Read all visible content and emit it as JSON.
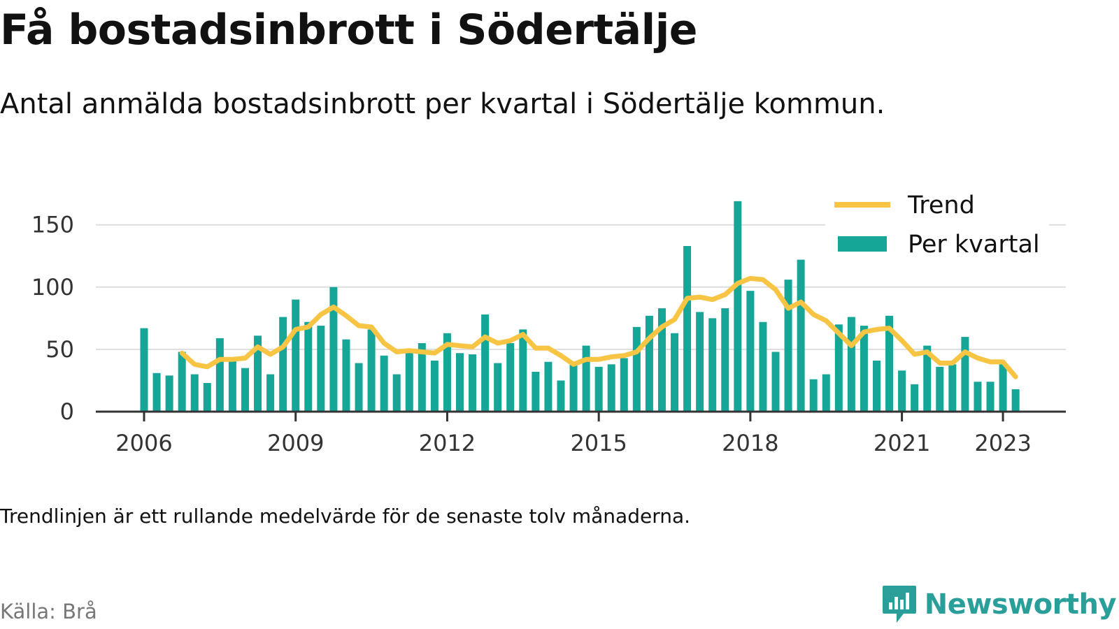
{
  "header": {
    "title": "Få bostadsinbrott i Södertälje",
    "subtitle": "Antal anmälda bostadsinbrott per kvartal i Södertälje kommun."
  },
  "footer": {
    "note": "Trendlinjen är ett rullande medelvärde för de senaste tolv månaderna.",
    "source": "Källa: Brå",
    "brand": "Newsworthy"
  },
  "colors": {
    "bar": "#16a697",
    "trend": "#f7c444",
    "grid": "#dddddd",
    "axis": "#333333",
    "brand": "#2a9f99"
  },
  "chart_data": {
    "type": "bar",
    "x_start": "2006 Q1",
    "ylim": [
      0,
      170
    ],
    "yticks": [
      0,
      50,
      100,
      150
    ],
    "xtick_labels": [
      {
        "label": "2006",
        "year": 2006
      },
      {
        "label": "2009",
        "year": 2009
      },
      {
        "label": "2012",
        "year": 2012
      },
      {
        "label": "2015",
        "year": 2015
      },
      {
        "label": "2018",
        "year": 2018
      },
      {
        "label": "2021",
        "year": 2021
      },
      {
        "label": "2023",
        "year": 2023
      }
    ],
    "grid": true,
    "legend_position": "top-right",
    "series": [
      {
        "name": "Per kvartal",
        "kind": "bar",
        "values": [
          67,
          31,
          29,
          48,
          30,
          23,
          59,
          43,
          35,
          61,
          30,
          76,
          90,
          72,
          69,
          100,
          58,
          39,
          66,
          45,
          30,
          48,
          55,
          41,
          63,
          47,
          46,
          78,
          39,
          55,
          66,
          32,
          40,
          25,
          40,
          53,
          36,
          38,
          43,
          68,
          77,
          83,
          63,
          133,
          80,
          75,
          83,
          169,
          97,
          72,
          48,
          106,
          122,
          26,
          30,
          70,
          76,
          69,
          41,
          77,
          33,
          22,
          53,
          36,
          38,
          60,
          24,
          24,
          38,
          18
        ]
      },
      {
        "name": "Trend",
        "kind": "line",
        "start_index": 3,
        "values": [
          47,
          38,
          36,
          42,
          42,
          43,
          52,
          46,
          52,
          66,
          68,
          78,
          84,
          77,
          69,
          68,
          55,
          48,
          49,
          48,
          47,
          54,
          53,
          52,
          60,
          55,
          57,
          62,
          51,
          51,
          45,
          38,
          42,
          42,
          44,
          45,
          48,
          59,
          68,
          74,
          91,
          92,
          90,
          94,
          103,
          107,
          106,
          98,
          83,
          88,
          78,
          73,
          63,
          53,
          64,
          66,
          67,
          57,
          46,
          48,
          39,
          39,
          48,
          43,
          40,
          40,
          28
        ]
      }
    ]
  }
}
